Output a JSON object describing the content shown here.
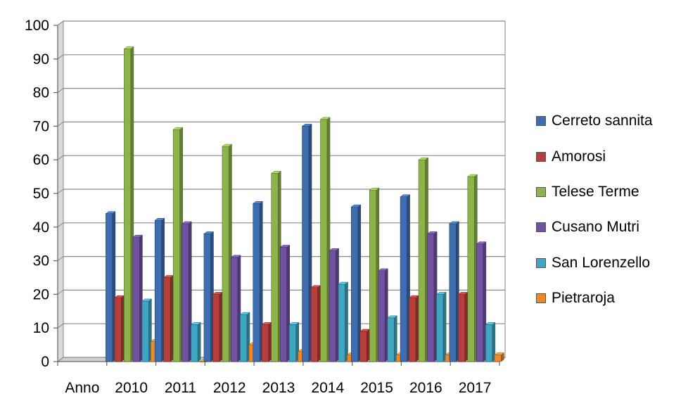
{
  "chart_data": {
    "type": "bar",
    "title": "",
    "xlabel": "",
    "ylabel": "",
    "categories": [
      "Anno",
      "2010",
      "2011",
      "2012",
      "2013",
      "2014",
      "2015",
      "2016",
      "2017"
    ],
    "ylim": [
      0,
      100
    ],
    "yticks": [
      "0",
      "10",
      "20",
      "30",
      "40",
      "50",
      "60",
      "70",
      "80",
      "90",
      "100"
    ],
    "grid": true,
    "legend_position": "right",
    "series": [
      {
        "name": "Cerreto sannita",
        "color": "#3f6eb0",
        "values": [
          null,
          44,
          42,
          38,
          47,
          70,
          46,
          49,
          41
        ]
      },
      {
        "name": "Amorosi",
        "color": "#b5403b",
        "values": [
          null,
          19,
          25,
          20,
          11,
          22,
          9,
          19,
          20
        ]
      },
      {
        "name": "Telese Terme",
        "color": "#8db44a",
        "values": [
          null,
          93,
          69,
          64,
          56,
          72,
          51,
          60,
          55
        ]
      },
      {
        "name": "Cusano Mutri",
        "color": "#7052a0",
        "values": [
          null,
          37,
          41,
          31,
          34,
          33,
          27,
          38,
          35
        ]
      },
      {
        "name": "San Lorenzello",
        "color": "#3fa5c0",
        "values": [
          null,
          18,
          11,
          14,
          11,
          23,
          13,
          20,
          11
        ]
      },
      {
        "name": "Pietraroja",
        "color": "#ef8a2b",
        "values": [
          null,
          6,
          0,
          5,
          3,
          2,
          2,
          2,
          2
        ]
      }
    ]
  }
}
